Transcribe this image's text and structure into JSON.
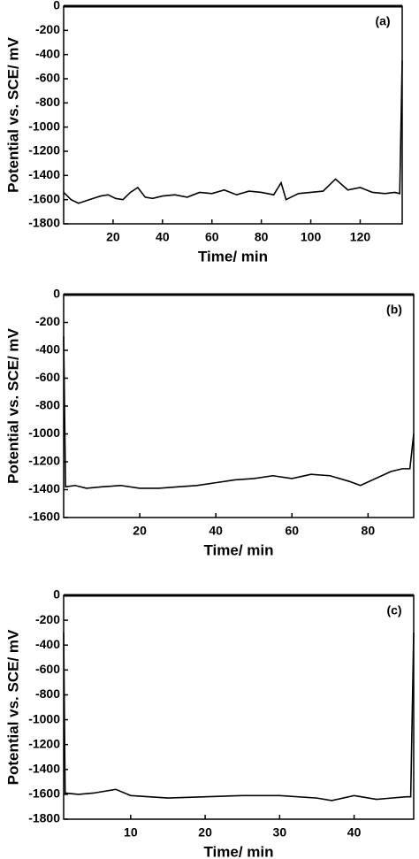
{
  "chart_data": [
    {
      "type": "line",
      "annotation": "(a)",
      "x_label": "Time/ min",
      "y_label": "Potential vs. SCE/ mV",
      "x": [
        0,
        3,
        6,
        9,
        12,
        15,
        18,
        21,
        24,
        27,
        30,
        33,
        36,
        40,
        45,
        50,
        55,
        60,
        65,
        70,
        75,
        80,
        85,
        88,
        90,
        95,
        100,
        105,
        110,
        115,
        120,
        125,
        130,
        134,
        136,
        137
      ],
      "series": [
        {
          "color": "#000000",
          "values": [
            -1540,
            -1600,
            -1630,
            -1610,
            -1590,
            -1570,
            -1560,
            -1590,
            -1600,
            -1540,
            -1500,
            -1580,
            -1590,
            -1570,
            -1560,
            -1580,
            -1540,
            -1550,
            -1520,
            -1560,
            -1530,
            -1540,
            -1560,
            -1460,
            -1600,
            -1550,
            -1540,
            -1530,
            -1430,
            -1520,
            -1500,
            -1540,
            -1550,
            -1540,
            -1550,
            -450
          ]
        }
      ],
      "xlim": [
        0,
        137
      ],
      "xticks": [
        20,
        40,
        60,
        80,
        100,
        120
      ],
      "ylim": [
        -1800,
        0
      ],
      "yticks": [
        0,
        -200,
        -400,
        -600,
        -800,
        -1000,
        -1200,
        -1400,
        -1600,
        -1800
      ]
    },
    {
      "type": "line",
      "annotation": "(b)",
      "x_label": "Time/ min",
      "y_label": "Potential vs. SCE/ mV",
      "x": [
        0,
        0.5,
        3,
        6,
        10,
        15,
        20,
        25,
        30,
        35,
        40,
        45,
        50,
        55,
        60,
        65,
        70,
        75,
        78,
        82,
        86,
        89,
        91,
        92
      ],
      "series": [
        {
          "color": "#000000",
          "values": [
            -300,
            -1380,
            -1370,
            -1390,
            -1380,
            -1370,
            -1390,
            -1390,
            -1380,
            -1370,
            -1350,
            -1330,
            -1320,
            -1300,
            -1320,
            -1290,
            -1300,
            -1340,
            -1370,
            -1320,
            -1270,
            -1250,
            -1250,
            -1000
          ]
        }
      ],
      "xlim": [
        0,
        92
      ],
      "xticks": [
        20,
        40,
        60,
        80
      ],
      "ylim": [
        -1600,
        0
      ],
      "yticks": [
        0,
        -200,
        -400,
        -600,
        -800,
        -1000,
        -1200,
        -1400,
        -1600
      ]
    },
    {
      "type": "line",
      "annotation": "(c)",
      "x_label": "Time/ min",
      "y_label": "Potential vs. SCE/ mV",
      "x": [
        1,
        1.2,
        3,
        5,
        8,
        10,
        15,
        20,
        25,
        30,
        35,
        37,
        40,
        43,
        45,
        47,
        47.6,
        48
      ],
      "series": [
        {
          "color": "#000000",
          "values": [
            -300,
            -1590,
            -1600,
            -1590,
            -1560,
            -1610,
            -1630,
            -1620,
            -1610,
            -1610,
            -1630,
            -1650,
            -1610,
            -1640,
            -1630,
            -1620,
            -1620,
            -300
          ]
        }
      ],
      "xlim": [
        1,
        48
      ],
      "xticks": [
        10,
        20,
        30,
        40
      ],
      "ylim": [
        -1800,
        0
      ],
      "yticks": [
        0,
        -200,
        -400,
        -600,
        -800,
        -1000,
        -1200,
        -1400,
        -1600,
        -1800
      ]
    }
  ]
}
